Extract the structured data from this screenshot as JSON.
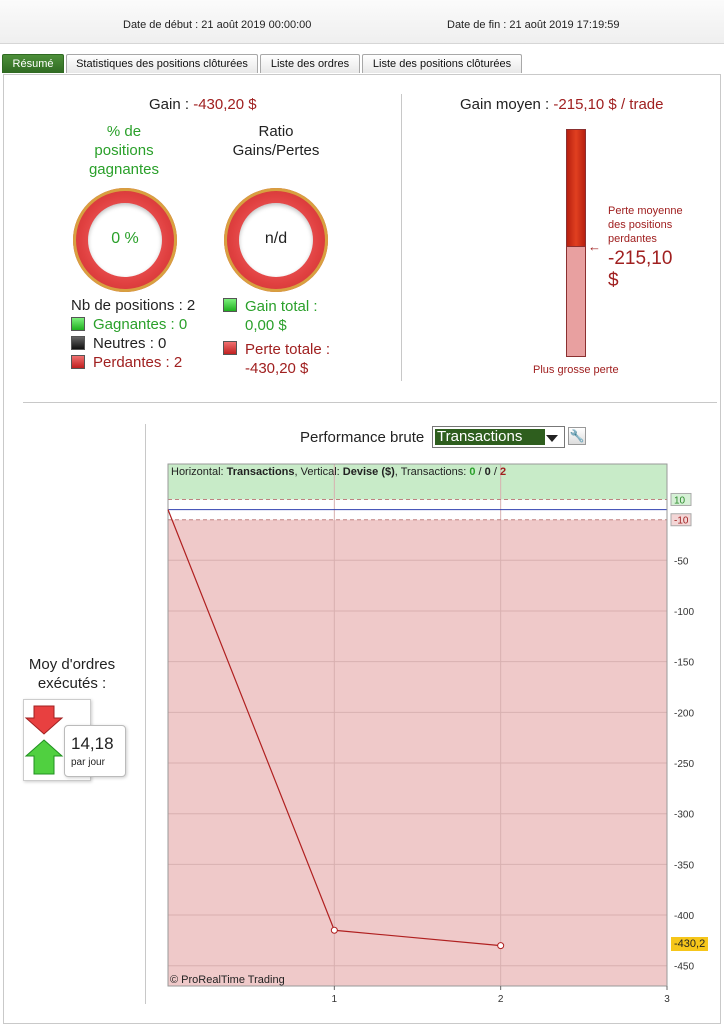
{
  "header": {
    "start_label": "Date de début :",
    "start_value": "21 août 2019 00:00:00",
    "end_label": "Date de fin :",
    "end_value": "21 août 2019 17:19:59"
  },
  "tabs": [
    {
      "label": "Résumé",
      "active": true
    },
    {
      "label": "Statistiques des positions clôturées",
      "active": false
    },
    {
      "label": "Liste des ordres",
      "active": false
    },
    {
      "label": "Liste des positions clôturées",
      "active": false
    }
  ],
  "summary": {
    "gain_label": "Gain :",
    "gain_value": "-430,20 $",
    "win_pct_title": [
      "% de",
      "positions",
      "gagnantes"
    ],
    "win_pct_value": "0 %",
    "ratio_title": [
      "Ratio",
      "Gains/Pertes"
    ],
    "ratio_value": "n/d",
    "nb_positions": "Nb de positions : 2",
    "winners": "Gagnantes : 0",
    "neutral": "Neutres : 0",
    "losers": "Perdantes : 2",
    "total_gain_label": "Gain total :",
    "total_gain_value": "0,00 $",
    "total_loss_label": "Perte totale :",
    "total_loss_value": "-430,20 $",
    "avg_gain_label": "Gain moyen :",
    "avg_gain_value": "-215,10 $ / trade",
    "avg_loss_caption": [
      "Perte moyenne",
      "des positions",
      "perdantes"
    ],
    "avg_loss_value": "-215,10",
    "avg_loss_unit": "$",
    "max_loss_label": "Plus grosse perte"
  },
  "orders": {
    "label_lines": [
      "Moy d'ordres",
      "exécutés :"
    ],
    "value": "14,18",
    "unit": "par jour"
  },
  "performance": {
    "title": "Performance brute",
    "selector_value": "Transactions",
    "info_prefix": "Horizontal: ",
    "info_h": "Transactions",
    "info_mid": ", Vertical: ",
    "info_v": "Devise ($)",
    "info_tx": ", Transactions: ",
    "info_w": "0",
    "info_n": "0",
    "info_l": "2",
    "copyright": "© ProRealTime Trading",
    "last_value_label": "-430,2"
  },
  "colors": {
    "accent_green": "#2e6a22",
    "loss_red": "#a02020",
    "chart_loss_zone": "#efc9c9",
    "chart_gain_zone": "#c8ebc8"
  },
  "chart_data": {
    "type": "line",
    "x": [
      0,
      1,
      2
    ],
    "y": [
      0,
      -415,
      -430.2
    ],
    "xlim": [
      0,
      3
    ],
    "ylim": [
      -470,
      45
    ],
    "x_ticks": [
      1,
      2,
      3
    ],
    "y_ticks": [
      -50,
      -100,
      -150,
      -200,
      -250,
      -300,
      -350,
      -400,
      -450
    ],
    "threshold_labels": [
      "10",
      "-10"
    ],
    "xlabel": "Transactions",
    "ylabel": "Devise ($)",
    "grid": true
  }
}
